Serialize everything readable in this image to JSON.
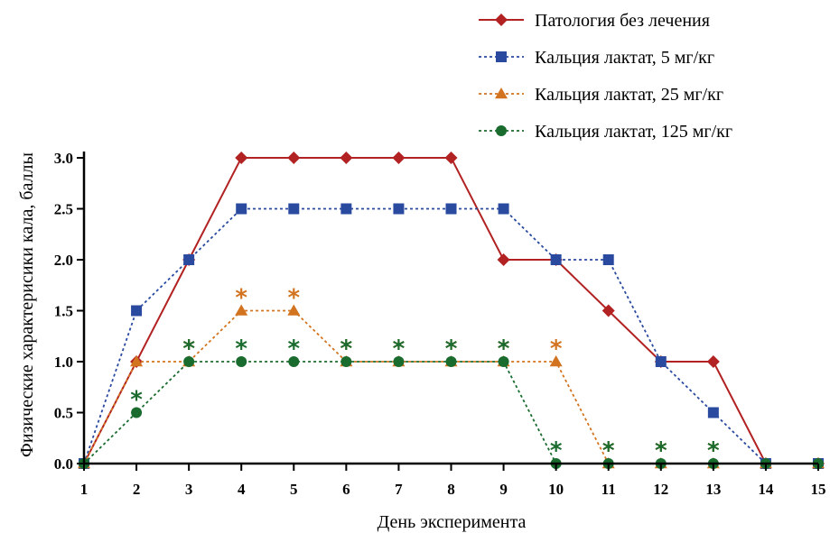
{
  "chart_data": {
    "type": "line",
    "title": "",
    "xlabel": "День эксперимента",
    "ylabel": "Физические характерисики кала, баллы",
    "x": [
      1,
      2,
      3,
      4,
      5,
      6,
      7,
      8,
      9,
      10,
      11,
      12,
      13,
      14,
      15
    ],
    "xlim": [
      1,
      15
    ],
    "ylim": [
      0,
      3
    ],
    "yticks": [
      "0.0",
      "0.5",
      "1.0",
      "1.5",
      "2.0",
      "2.5",
      "3.0"
    ],
    "xticks": [
      "1",
      "2",
      "3",
      "4",
      "5",
      "6",
      "7",
      "8",
      "9",
      "10",
      "11",
      "12",
      "13",
      "14",
      "15"
    ],
    "grid": false,
    "legend_position": "top-right",
    "series": [
      {
        "name": "Патология без лечения",
        "color": "#b22222",
        "marker": "diamond",
        "line": "solid",
        "values": [
          0,
          1,
          2,
          3,
          3,
          3,
          3,
          3,
          2,
          2,
          1.5,
          1,
          1,
          0,
          0
        ],
        "stars": []
      },
      {
        "name": "Кальция лактат, 5 мг/кг",
        "color": "#2a4aa0",
        "marker": "square",
        "line": "dotted",
        "values": [
          0,
          1.5,
          2,
          2.5,
          2.5,
          2.5,
          2.5,
          2.5,
          2.5,
          2,
          2,
          1,
          0.5,
          0,
          0
        ],
        "stars": []
      },
      {
        "name": "Кальция лактат, 25 мг/кг",
        "color": "#d2741f",
        "marker": "triangle",
        "line": "dotted",
        "values": [
          0,
          1,
          1,
          1.5,
          1.5,
          1,
          1,
          1,
          1,
          1,
          0,
          0,
          0,
          0,
          0
        ],
        "stars": [
          3,
          4,
          5,
          6,
          7,
          8,
          9,
          10,
          11,
          12,
          13
        ]
      },
      {
        "name": "Кальция лактат, 125 мг/кг",
        "color": "#1a6b2e",
        "marker": "circle",
        "line": "dotted",
        "values": [
          0,
          0.5,
          1,
          1,
          1,
          1,
          1,
          1,
          1,
          0,
          0,
          0,
          0,
          0,
          0
        ],
        "stars": [
          2,
          3,
          4,
          5,
          6,
          7,
          8,
          9,
          10,
          11,
          12,
          13
        ]
      }
    ],
    "star_symbol": "*"
  }
}
